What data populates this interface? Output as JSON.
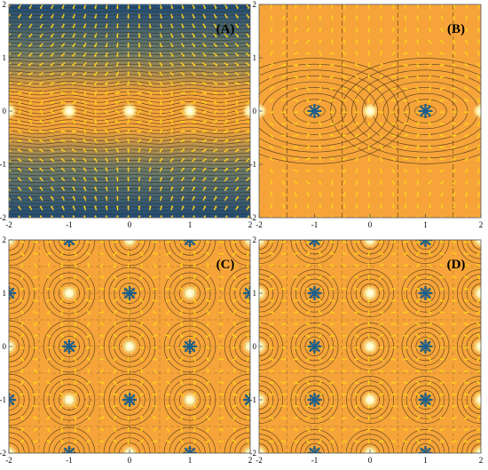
{
  "chart_data": [
    {
      "type": "contour-vector-field",
      "panel_label": "(A)",
      "xlim": [
        -2,
        2
      ],
      "ylim": [
        -2,
        2
      ],
      "x_ticks": [
        "-2",
        "-1",
        "0",
        "1",
        "2"
      ],
      "y_ticks": [
        "-2",
        "-1",
        "0",
        "1",
        "2"
      ],
      "singular_points": [
        {
          "x": -2,
          "y": 0,
          "kind": "bright"
        },
        {
          "x": -1,
          "y": 0,
          "kind": "bright"
        },
        {
          "x": 0,
          "y": 0,
          "kind": "bright"
        },
        {
          "x": 1,
          "y": 0,
          "kind": "bright"
        },
        {
          "x": 2,
          "y": 0,
          "kind": "bright"
        }
      ]
    },
    {
      "type": "contour-vector-field",
      "panel_label": "(B)",
      "xlim": [
        -2,
        2
      ],
      "ylim": [
        -2,
        2
      ],
      "x_ticks": [
        "-2",
        "-1",
        "0",
        "1",
        "2"
      ],
      "y_ticks": [
        "-2",
        "-1",
        "0",
        "1",
        "2"
      ],
      "singular_points": [
        {
          "x": -2,
          "y": 0,
          "kind": "bright"
        },
        {
          "x": -1,
          "y": 0,
          "kind": "dark"
        },
        {
          "x": 0,
          "y": 0,
          "kind": "bright"
        },
        {
          "x": 1,
          "y": 0,
          "kind": "dark"
        },
        {
          "x": 2,
          "y": 0,
          "kind": "bright"
        }
      ]
    },
    {
      "type": "contour-vector-field",
      "panel_label": "(C)",
      "xlim": [
        -2,
        2
      ],
      "ylim": [
        -2,
        2
      ],
      "x_ticks": [
        "-2",
        "-1",
        "0",
        "1",
        "2"
      ],
      "y_ticks": [
        "-2",
        "-1",
        "0",
        "1",
        "2"
      ],
      "singular_points": [
        {
          "x": -2,
          "y": 2,
          "kind": "bright"
        },
        {
          "x": -1,
          "y": 2,
          "kind": "dark"
        },
        {
          "x": 0,
          "y": 2,
          "kind": "bright"
        },
        {
          "x": 1,
          "y": 2,
          "kind": "dark"
        },
        {
          "x": 2,
          "y": 2,
          "kind": "bright"
        },
        {
          "x": -2,
          "y": 1,
          "kind": "dark"
        },
        {
          "x": -1,
          "y": 1,
          "kind": "bright"
        },
        {
          "x": 0,
          "y": 1,
          "kind": "dark"
        },
        {
          "x": 1,
          "y": 1,
          "kind": "bright"
        },
        {
          "x": 2,
          "y": 1,
          "kind": "dark"
        },
        {
          "x": -2,
          "y": 0,
          "kind": "bright"
        },
        {
          "x": -1,
          "y": 0,
          "kind": "dark"
        },
        {
          "x": 0,
          "y": 0,
          "kind": "bright"
        },
        {
          "x": 1,
          "y": 0,
          "kind": "dark"
        },
        {
          "x": 2,
          "y": 0,
          "kind": "bright"
        },
        {
          "x": -2,
          "y": -1,
          "kind": "dark"
        },
        {
          "x": -1,
          "y": -1,
          "kind": "bright"
        },
        {
          "x": 0,
          "y": -1,
          "kind": "dark"
        },
        {
          "x": 1,
          "y": -1,
          "kind": "bright"
        },
        {
          "x": 2,
          "y": -1,
          "kind": "dark"
        },
        {
          "x": -2,
          "y": -2,
          "kind": "bright"
        },
        {
          "x": -1,
          "y": -2,
          "kind": "dark"
        },
        {
          "x": 0,
          "y": -2,
          "kind": "bright"
        },
        {
          "x": 1,
          "y": -2,
          "kind": "dark"
        },
        {
          "x": 2,
          "y": -2,
          "kind": "bright"
        }
      ]
    },
    {
      "type": "contour-vector-field",
      "panel_label": "(D)",
      "xlim": [
        -2,
        2
      ],
      "ylim": [
        -2,
        2
      ],
      "x_ticks": [
        "-2",
        "-1",
        "0",
        "1",
        "2"
      ],
      "y_ticks": [
        "-2",
        "-1",
        "0",
        "1",
        "2"
      ],
      "singular_points": [
        {
          "x": -2,
          "y": 2,
          "kind": "bright"
        },
        {
          "x": -1,
          "y": 2,
          "kind": "dark"
        },
        {
          "x": 0,
          "y": 2,
          "kind": "bright"
        },
        {
          "x": 1,
          "y": 2,
          "kind": "dark"
        },
        {
          "x": 2,
          "y": 2,
          "kind": "bright"
        },
        {
          "x": -2,
          "y": 1,
          "kind": "bright"
        },
        {
          "x": -1,
          "y": 1,
          "kind": "dark"
        },
        {
          "x": 0,
          "y": 1,
          "kind": "bright"
        },
        {
          "x": 1,
          "y": 1,
          "kind": "dark"
        },
        {
          "x": 2,
          "y": 1,
          "kind": "bright"
        },
        {
          "x": -2,
          "y": 0,
          "kind": "bright"
        },
        {
          "x": -1,
          "y": 0,
          "kind": "dark"
        },
        {
          "x": 0,
          "y": 0,
          "kind": "bright"
        },
        {
          "x": 1,
          "y": 0,
          "kind": "dark"
        },
        {
          "x": 2,
          "y": 0,
          "kind": "bright"
        },
        {
          "x": -2,
          "y": -1,
          "kind": "bright"
        },
        {
          "x": -1,
          "y": -1,
          "kind": "dark"
        },
        {
          "x": 0,
          "y": -1,
          "kind": "bright"
        },
        {
          "x": 1,
          "y": -1,
          "kind": "dark"
        },
        {
          "x": 2,
          "y": -1,
          "kind": "bright"
        },
        {
          "x": -2,
          "y": -2,
          "kind": "bright"
        },
        {
          "x": -1,
          "y": -2,
          "kind": "dark"
        },
        {
          "x": 0,
          "y": -2,
          "kind": "bright"
        },
        {
          "x": 1,
          "y": -2,
          "kind": "dark"
        },
        {
          "x": 2,
          "y": -2,
          "kind": "bright"
        }
      ]
    }
  ],
  "colors": {
    "background_orange": "#f6a43a",
    "deep_blue": "#1f4e7a",
    "contour_dark": "#3a2a12",
    "arrow_yellow": "#ffd21a",
    "bright_point": "#fff3a8",
    "dark_point": "#1d5f8a",
    "frame": "#555555",
    "tick_text": "#000000",
    "label_text": "#000000"
  }
}
